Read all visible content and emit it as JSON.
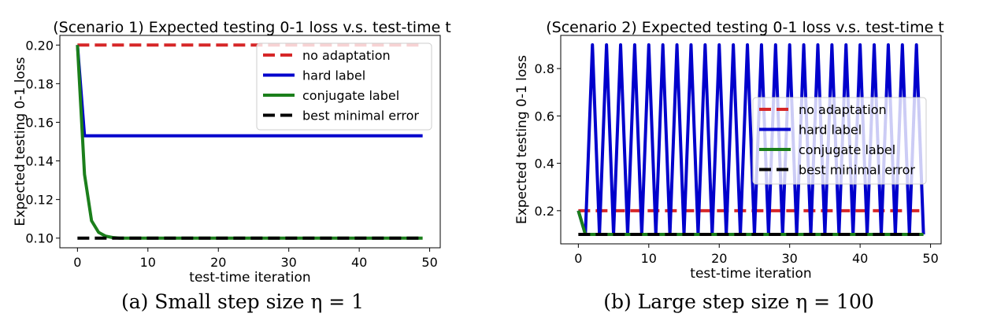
{
  "panels": [
    {
      "caption": "(a) Small step size η = 1",
      "chart_data": {
        "type": "line",
        "title": "(Scenario 1) Expected testing 0-1 loss  v.s. test-time t",
        "xlabel": "test-time iteration",
        "ylabel": "Expected testing 0-1 loss",
        "xlim": [
          -2.5,
          51.5
        ],
        "ylim": [
          0.095,
          0.205
        ],
        "xticks": [
          0,
          10,
          20,
          30,
          40,
          50
        ],
        "xtick_labels": [
          "0",
          "10",
          "20",
          "30",
          "40",
          "50"
        ],
        "yticks": [
          0.1,
          0.12,
          0.14,
          0.16,
          0.18,
          0.2
        ],
        "ytick_labels": [
          "0.10",
          "0.12",
          "0.14",
          "0.16",
          "0.18",
          "0.20"
        ],
        "grid": false,
        "legend_position": "top-right",
        "series": [
          {
            "name": "no adaptation",
            "color": "#d62728",
            "dash": true,
            "x": [
              0,
              49
            ],
            "y": [
              0.2,
              0.2
            ]
          },
          {
            "name": "hard label",
            "color": "#0000cc",
            "dash": false,
            "x": [
              0,
              1,
              49
            ],
            "y": [
              0.2,
              0.153,
              0.153
            ]
          },
          {
            "name": "conjugate label",
            "color": "#1b7f1b",
            "dash": false,
            "x": [
              0,
              1,
              2,
              3,
              4,
              5,
              6,
              49
            ],
            "y": [
              0.2,
              0.133,
              0.109,
              0.103,
              0.101,
              0.1003,
              0.1,
              0.1
            ]
          },
          {
            "name": "best minimal error",
            "color": "#000000",
            "dash": true,
            "x": [
              0,
              49
            ],
            "y": [
              0.1,
              0.1
            ]
          }
        ]
      }
    },
    {
      "caption": "(b) Large step size η = 100",
      "chart_data": {
        "type": "line",
        "title": "(Scenario 2) Expected testing 0-1 loss  v.s. test-time t",
        "xlabel": "test-time iteration",
        "ylabel": "Expected testing 0-1 loss",
        "xlim": [
          -2.5,
          51.5
        ],
        "ylim": [
          0.06,
          0.94
        ],
        "xticks": [
          0,
          10,
          20,
          30,
          40,
          50
        ],
        "xtick_labels": [
          "0",
          "10",
          "20",
          "30",
          "40",
          "50"
        ],
        "yticks": [
          0.2,
          0.4,
          0.6,
          0.8
        ],
        "ytick_labels": [
          "0.2",
          "0.4",
          "0.6",
          "0.8"
        ],
        "grid": false,
        "legend_position": "center-right",
        "series": [
          {
            "name": "no adaptation",
            "color": "#d62728",
            "dash": true,
            "x": [
              0,
              49
            ],
            "y": [
              0.2,
              0.2
            ]
          },
          {
            "name": "hard label",
            "color": "#0000cc",
            "dash": false,
            "x": [
              0,
              1,
              2,
              3,
              4,
              5,
              6,
              7,
              8,
              9,
              10,
              11,
              12,
              13,
              14,
              15,
              16,
              17,
              18,
              19,
              20,
              21,
              22,
              23,
              24,
              25,
              26,
              27,
              28,
              29,
              30,
              31,
              32,
              33,
              34,
              35,
              36,
              37,
              38,
              39,
              40,
              41,
              42,
              43,
              44,
              45,
              46,
              47,
              48,
              49
            ],
            "y": [
              0.2,
              0.1,
              0.9,
              0.1,
              0.9,
              0.1,
              0.9,
              0.1,
              0.9,
              0.1,
              0.9,
              0.1,
              0.9,
              0.1,
              0.9,
              0.1,
              0.9,
              0.1,
              0.9,
              0.1,
              0.9,
              0.1,
              0.9,
              0.1,
              0.9,
              0.1,
              0.9,
              0.1,
              0.9,
              0.1,
              0.9,
              0.1,
              0.9,
              0.1,
              0.9,
              0.1,
              0.9,
              0.1,
              0.9,
              0.1,
              0.9,
              0.1,
              0.9,
              0.1,
              0.9,
              0.1,
              0.9,
              0.1,
              0.9,
              0.1
            ]
          },
          {
            "name": "conjugate label",
            "color": "#1b7f1b",
            "dash": false,
            "x": [
              0,
              1,
              49
            ],
            "y": [
              0.2,
              0.1,
              0.1
            ]
          },
          {
            "name": "best minimal error",
            "color": "#000000",
            "dash": true,
            "x": [
              0,
              49
            ],
            "y": [
              0.1,
              0.1
            ]
          }
        ]
      }
    }
  ]
}
